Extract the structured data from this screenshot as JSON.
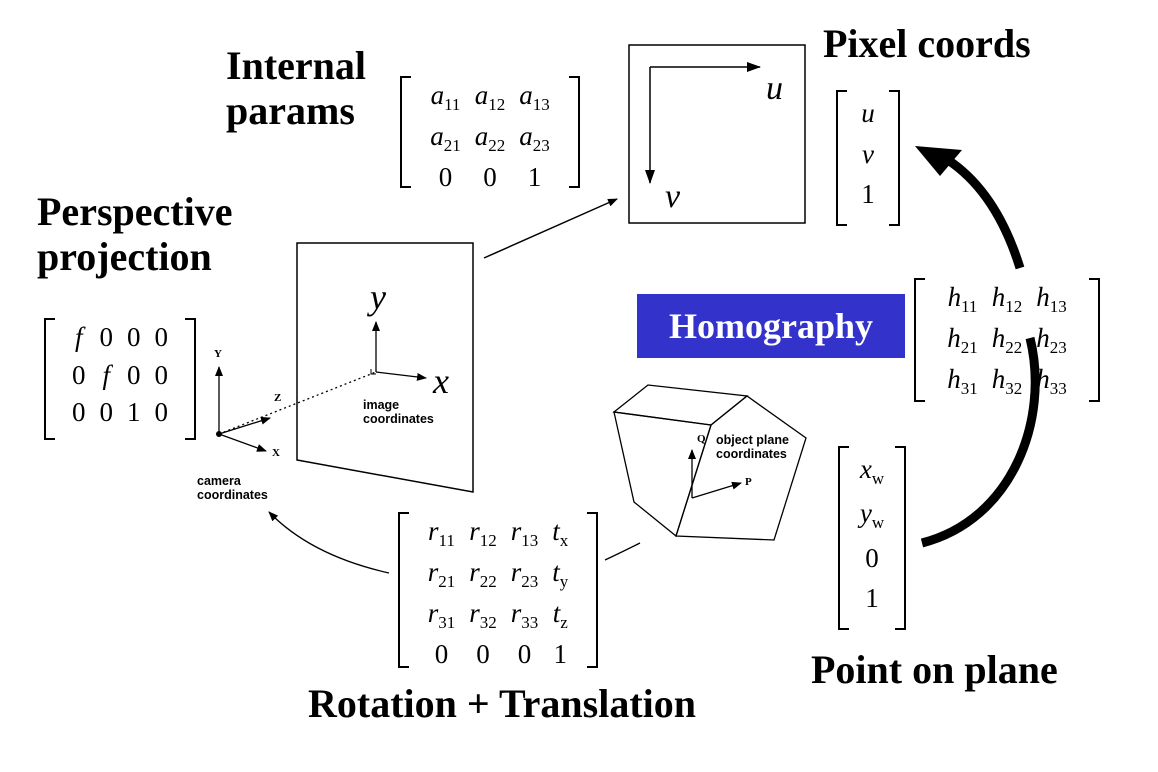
{
  "labels": {
    "internal_params": "Internal params",
    "pixel_coords": "Pixel coords",
    "perspective_projection": "Perspective projection",
    "homography": "Homography",
    "point_on_plane": "Point on plane",
    "rotation_translation": "Rotation + Translation"
  },
  "matrices": {
    "internal": [
      [
        "a11",
        "a12",
        "a13"
      ],
      [
        "a21",
        "a22",
        "a23"
      ],
      [
        "0",
        "0",
        "1"
      ]
    ],
    "pixel": [
      [
        "u"
      ],
      [
        "v"
      ],
      [
        "1"
      ]
    ],
    "perspective": [
      [
        "f",
        "0",
        "0",
        "0"
      ],
      [
        "0",
        "f",
        "0",
        "0"
      ],
      [
        "0",
        "0",
        "1",
        "0"
      ]
    ],
    "homography": [
      [
        "h11",
        "h12",
        "h13"
      ],
      [
        "h21",
        "h22",
        "h23"
      ],
      [
        "h31",
        "h32",
        "h33"
      ]
    ],
    "point_plane": [
      [
        "xw"
      ],
      [
        "yw"
      ],
      [
        "0"
      ],
      [
        "1"
      ]
    ],
    "rotation": [
      [
        "r11",
        "r12",
        "r13",
        "tx"
      ],
      [
        "r21",
        "r22",
        "r23",
        "ty"
      ],
      [
        "r31",
        "r32",
        "r33",
        "tz"
      ],
      [
        "0",
        "0",
        "0",
        "1"
      ]
    ]
  },
  "pixel_frame": {
    "u_axis": "u",
    "v_axis": "v"
  },
  "image_plane": {
    "x_axis": "x",
    "y_axis": "y",
    "caption": "image coordinates"
  },
  "camera": {
    "y_axis": "Y",
    "z_axis": "Z",
    "x_axis": "X",
    "caption": "camera coordinates"
  },
  "object_plane": {
    "q_axis": "Q",
    "p_axis": "P",
    "caption": "object plane coordinates"
  }
}
